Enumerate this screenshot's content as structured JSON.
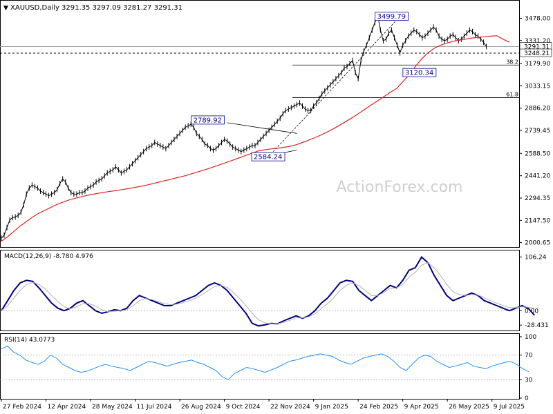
{
  "header": {
    "symbol": "XAUUSD,Daily",
    "ohlc": "3291.35 3297.09 3281.27 3291.31"
  },
  "watermark": "ActionForex.com",
  "colors": {
    "price": "#000000",
    "ma": "#e02020",
    "macd": "#000080",
    "signal": "#b0b0b0",
    "rsi": "#1e90ff",
    "grid": "#c8c8c8",
    "frame": "#000000"
  },
  "chart_data": [
    {
      "type": "line",
      "panel": "price",
      "ylim": [
        1990,
        3580
      ],
      "y_ticks": [
        "3478.00",
        "3331.20",
        "3179.90",
        "3033.15",
        "2886.20",
        "2739.45",
        "2588.50",
        "2441.20",
        "2294.35",
        "2147.50",
        "2000.65"
      ],
      "price_labels": [
        "3291.31",
        "3248.21"
      ],
      "current_price": 3291.31,
      "horizontal_level": 3248.21,
      "x_labels": [
        "27 Feb 2024",
        "12 Apr 2024",
        "28 May 2024",
        "11 Jul 2024",
        "26 Aug 2024",
        "9 Oct 2024",
        "22 Nov 2024",
        "9 Jan 2025",
        "24 Feb 2025",
        "9 Apr 2025",
        "26 May 2025",
        "9 Jul 2025"
      ],
      "x_tick_index": [
        0,
        32,
        64,
        96,
        128,
        160,
        192,
        224,
        256,
        288,
        320,
        352
      ],
      "series": [
        {
          "values": [
            2030,
            2050,
            2100,
            2150,
            2165,
            2170,
            2180,
            2200,
            2250,
            2320,
            2360,
            2380,
            2370,
            2360,
            2340,
            2330,
            2320,
            2310,
            2320,
            2330,
            2350,
            2390,
            2420,
            2400,
            2360,
            2330,
            2320,
            2320,
            2330,
            2330,
            2340,
            2360,
            2370,
            2380,
            2400,
            2410,
            2420,
            2440,
            2460,
            2470,
            2480,
            2500,
            2480,
            2460,
            2470,
            2480,
            2500,
            2520,
            2540,
            2560,
            2580,
            2600,
            2620,
            2630,
            2640,
            2660,
            2650,
            2640,
            2630,
            2620,
            2640,
            2660,
            2680,
            2700,
            2720,
            2740,
            2760,
            2770,
            2780,
            2760,
            2720,
            2700,
            2680,
            2650,
            2640,
            2620,
            2610,
            2620,
            2640,
            2660,
            2680,
            2670,
            2650,
            2630,
            2620,
            2610,
            2600,
            2610,
            2620,
            2630,
            2640,
            2640,
            2660,
            2680,
            2700,
            2720,
            2740,
            2760,
            2780,
            2800,
            2820,
            2850,
            2870,
            2880,
            2890,
            2900,
            2910,
            2920,
            2900,
            2880,
            2870,
            2870,
            2900,
            2920,
            2950,
            2980,
            3000,
            3020,
            3040,
            3060,
            3080,
            3100,
            3120,
            3150,
            3160,
            3180,
            3200,
            3120,
            3080,
            3200,
            3260,
            3300,
            3350,
            3400,
            3450,
            3499.79,
            3400,
            3330,
            3340,
            3380,
            3400,
            3350,
            3300,
            3250,
            3300,
            3330,
            3360,
            3380,
            3400,
            3390,
            3370,
            3350,
            3360,
            3380,
            3400,
            3420,
            3400,
            3360,
            3340,
            3330,
            3340,
            3360,
            3370,
            3350,
            3330,
            3340,
            3360,
            3380,
            3400,
            3390,
            3370,
            3360,
            3340,
            3320,
            3291.31
          ],
          "x_index_start": 0,
          "x_step": 2
        },
        {
          "name": "MA",
          "values": [
            2010,
            2040,
            2075,
            2110,
            2140,
            2170,
            2195,
            2215,
            2235,
            2255,
            2270,
            2285,
            2295,
            2305,
            2315,
            2322,
            2330,
            2336,
            2342,
            2348,
            2355,
            2362,
            2370,
            2378,
            2388,
            2398,
            2408,
            2418,
            2428,
            2438,
            2450,
            2462,
            2475,
            2488,
            2502,
            2516,
            2530,
            2545,
            2560,
            2575,
            2590,
            2605,
            2612,
            2618,
            2622,
            2628,
            2635,
            2645,
            2660,
            2675,
            2692,
            2710,
            2730,
            2752,
            2775,
            2800,
            2825,
            2852,
            2880,
            2908,
            2935,
            2962,
            2990,
            3015,
            3060,
            3105,
            3160,
            3210,
            3250,
            3280,
            3300,
            3315,
            3325,
            3335,
            3340,
            3348,
            3352,
            3356,
            3360,
            3363,
            3340,
            3320
          ],
          "x_index_start": 0,
          "x_step": 4.5
        }
      ],
      "annotations": [
        {
          "text": "3499.79",
          "x_index": 287,
          "y": 3499.79
        },
        {
          "text": "2789.92",
          "x_index": 160,
          "y": 2789.92
        },
        {
          "text": "2584.24",
          "x_index": 187,
          "y": 2584.24
        },
        {
          "text": "3120.34",
          "x_index": 300,
          "y": 3120.34
        }
      ],
      "fibonacci": [
        {
          "label": "38.2",
          "value": 3170
        },
        {
          "label": "61.8",
          "value": 2955
        }
      ]
    },
    {
      "type": "line",
      "panel": "macd",
      "title": "MACD(12,26,9) -8.780 4.976",
      "ylim": [
        -35,
        115
      ],
      "y_ticks": [
        "106.24",
        "0.00",
        "-28.431"
      ],
      "series": [
        {
          "values": [
            0,
            20,
            40,
            55,
            60,
            58,
            45,
            30,
            15,
            5,
            0,
            5,
            15,
            20,
            10,
            0,
            -5,
            -2,
            2,
            0,
            5,
            20,
            30,
            25,
            20,
            15,
            10,
            10,
            15,
            20,
            25,
            30,
            40,
            50,
            55,
            50,
            40,
            25,
            10,
            -5,
            -25,
            -30,
            -28,
            -25,
            -26,
            -20,
            -15,
            -10,
            -15,
            -10,
            0,
            15,
            25,
            40,
            55,
            60,
            58,
            40,
            30,
            20,
            30,
            40,
            50,
            45,
            60,
            80,
            85,
            106,
            95,
            70,
            50,
            30,
            20,
            25,
            30,
            35,
            30,
            20,
            15,
            10,
            5,
            0,
            5,
            10,
            5,
            -8.78
          ],
          "x_step": 4.5
        },
        {
          "values": [
            0,
            10,
            25,
            40,
            52,
            56,
            52,
            43,
            30,
            18,
            8,
            4,
            8,
            14,
            14,
            9,
            2,
            -2,
            -1,
            0,
            2,
            10,
            20,
            24,
            22,
            18,
            14,
            12,
            13,
            16,
            20,
            25,
            32,
            40,
            48,
            50,
            46,
            36,
            24,
            10,
            -5,
            -18,
            -24,
            -26,
            -26,
            -23,
            -19,
            -14,
            -14,
            -12,
            -6,
            4,
            14,
            26,
            40,
            50,
            55,
            50,
            40,
            30,
            30,
            36,
            44,
            45,
            52,
            66,
            76,
            90,
            95,
            85,
            70,
            52,
            38,
            32,
            30,
            32,
            31,
            26,
            20,
            15,
            10,
            6,
            6,
            8,
            7,
            4.976
          ],
          "x_step": 4.5
        }
      ]
    },
    {
      "type": "line",
      "panel": "rsi",
      "title": "RSI(14) 43.0773",
      "ylim": [
        0,
        100
      ],
      "y_ticks": [
        "100",
        "70",
        "30",
        "0"
      ],
      "levels": [
        70,
        30
      ],
      "series": [
        {
          "values": [
            80,
            85,
            75,
            70,
            62,
            58,
            55,
            60,
            70,
            65,
            55,
            50,
            45,
            42,
            44,
            48,
            52,
            55,
            52,
            50,
            48,
            45,
            50,
            55,
            60,
            58,
            55,
            52,
            55,
            58,
            60,
            62,
            58,
            55,
            50,
            45,
            35,
            30,
            40,
            45,
            50,
            48,
            45,
            42,
            46,
            50,
            55,
            60,
            62,
            65,
            68,
            70,
            72,
            70,
            68,
            62,
            58,
            55,
            60,
            65,
            68,
            70,
            72,
            68,
            60,
            50,
            45,
            55,
            65,
            70,
            68,
            60,
            55,
            50,
            52,
            55,
            58,
            52,
            50,
            48,
            52,
            55,
            58,
            60,
            55,
            48,
            43.0773
          ],
          "x_step": 4.4
        }
      ]
    }
  ]
}
